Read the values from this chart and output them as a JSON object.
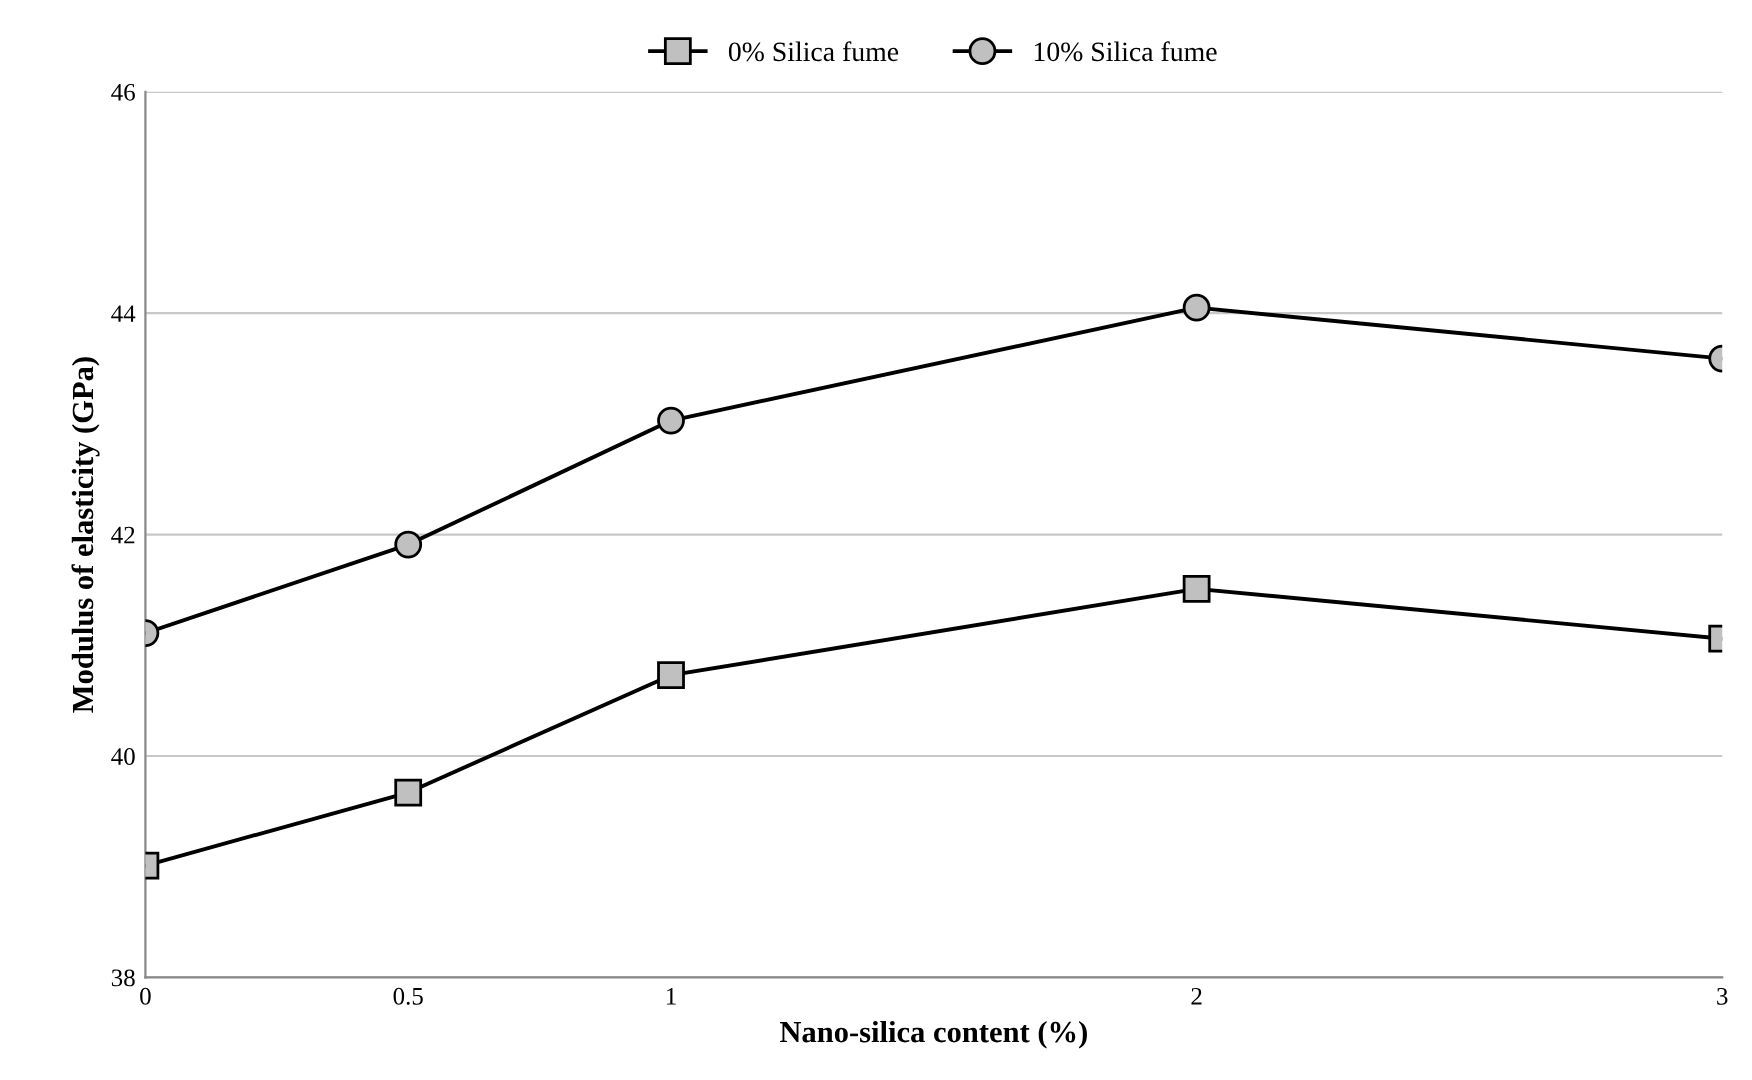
{
  "chart_data": {
    "type": "line",
    "xlabel": "Nano-silica content (%)",
    "ylabel": "Modulus of elasticity (GPa)",
    "x": [
      0,
      0.5,
      1,
      2,
      3
    ],
    "series": [
      {
        "name": "0% Silica fume",
        "color": "#000000",
        "marker": "square",
        "values": [
          39.01,
          39.67,
          40.73,
          41.51,
          41.06
        ]
      },
      {
        "name": "10% Silica fume",
        "color": "#000000",
        "marker": "circle",
        "values": [
          41.11,
          41.91,
          43.03,
          44.05,
          43.59
        ]
      }
    ],
    "xlim": [
      0,
      3
    ],
    "xticks": [
      0,
      0.5,
      1,
      2,
      3
    ],
    "ylim": [
      38,
      46
    ],
    "yticks": [
      38,
      40,
      42,
      44,
      46
    ],
    "grid": "y",
    "legend": "top",
    "line_style": "solid"
  }
}
